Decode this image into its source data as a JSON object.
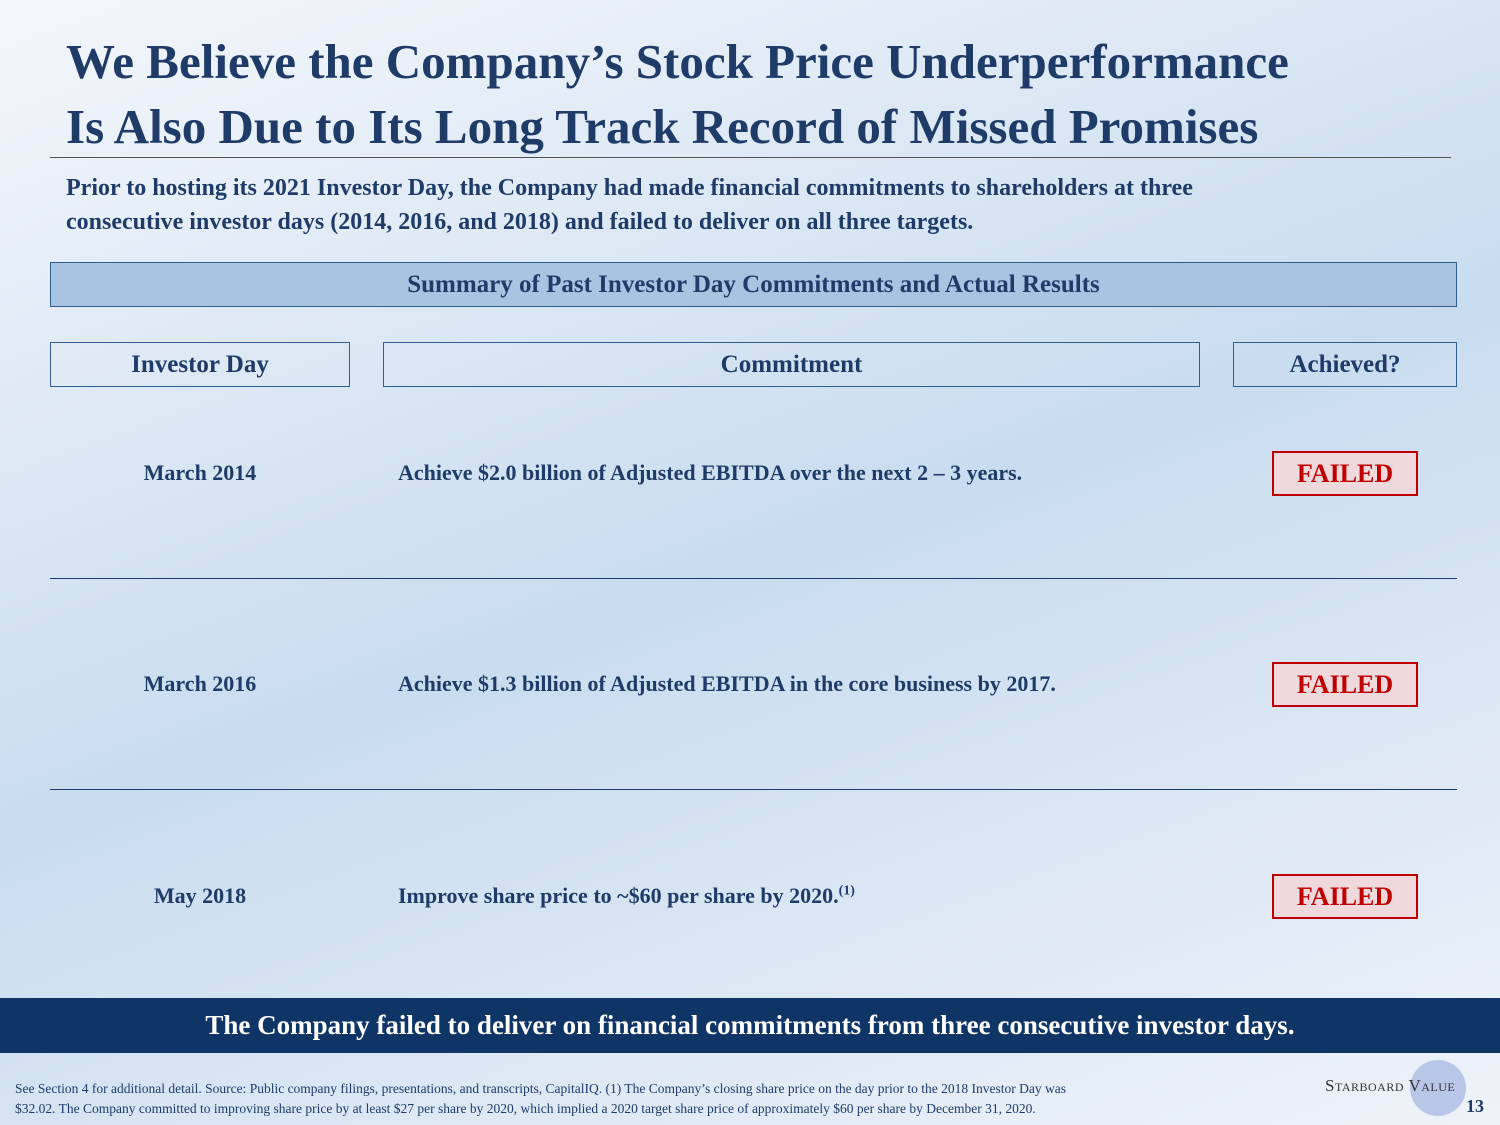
{
  "header": {
    "title_lines": [
      "We Believe the Company’s Stock Price Underperformance",
      "Is Also Due to Its Long Track Record of Missed Promises"
    ],
    "subtitle_lines": [
      "Prior to hosting its 2021 Investor Day, the Company had made financial commitments to shareholders at three",
      "consecutive investor days (2014, 2016, and 2018) and failed to deliver on all three targets."
    ]
  },
  "table": {
    "title": "Summary of Past Investor Day Commitments and Actual Results",
    "columns": [
      "Investor Day",
      "Commitment",
      "Achieved?"
    ],
    "rows": [
      {
        "date": "March 2014",
        "commitment": "Achieve $2.0 billion of Adjusted EBITDA over the next 2 – 3 years.",
        "status": "FAILED"
      },
      {
        "date": "March 2016",
        "commitment": "Achieve $1.3 billion of Adjusted EBITDA in the core business by 2017.",
        "status": "FAILED"
      },
      {
        "date": "May 2018",
        "commitment": "Improve share price to ~$60 per share by 2020.",
        "note": "(1)",
        "status": "FAILED"
      }
    ]
  },
  "banner": "The Company failed to deliver on financial commitments from three consecutive investor days.",
  "footer": {
    "footnote_lines": [
      "See Section 4 for additional detail. Source: Public company filings, presentations, and transcripts, CapitalIQ. (1) The Company’s closing share price on the day prior to the 2018 Investor Day was",
      "$32.02. The Company committed to improving share price by at least $27 per share by 2020, which implied a 2020 target share price of approximately $60 per share by December 31, 2020."
    ],
    "logo": "Starboard Value",
    "page_number": "13"
  }
}
